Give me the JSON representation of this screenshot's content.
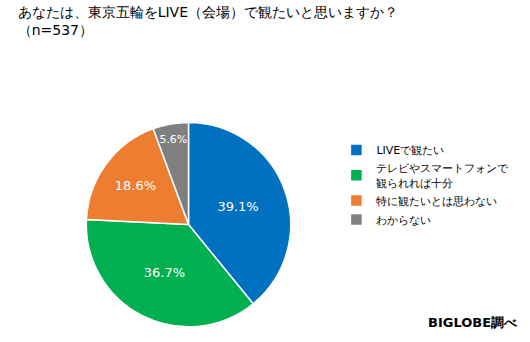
{
  "chart_data": {
    "type": "pie",
    "title": "あなたは、東京五輪をLIVE（会場）で観たいと思いますか？",
    "subtitle": "（n=537）",
    "categories": [
      "LIVEで観たい",
      "テレビやスマートフォンで\n観られれば十分",
      "特に観たいとは思わない",
      "わからない"
    ],
    "values": [
      39.1,
      36.7,
      18.6,
      5.6
    ],
    "value_labels": [
      "39.1%",
      "36.7%",
      "18.6%",
      "5.6%"
    ],
    "colors": [
      "#0070c0",
      "#00b050",
      "#ed7d31",
      "#7f7f7f"
    ],
    "data_labels": true,
    "legend": "right",
    "annotations": [
      "BIGLOBE調べ"
    ]
  }
}
